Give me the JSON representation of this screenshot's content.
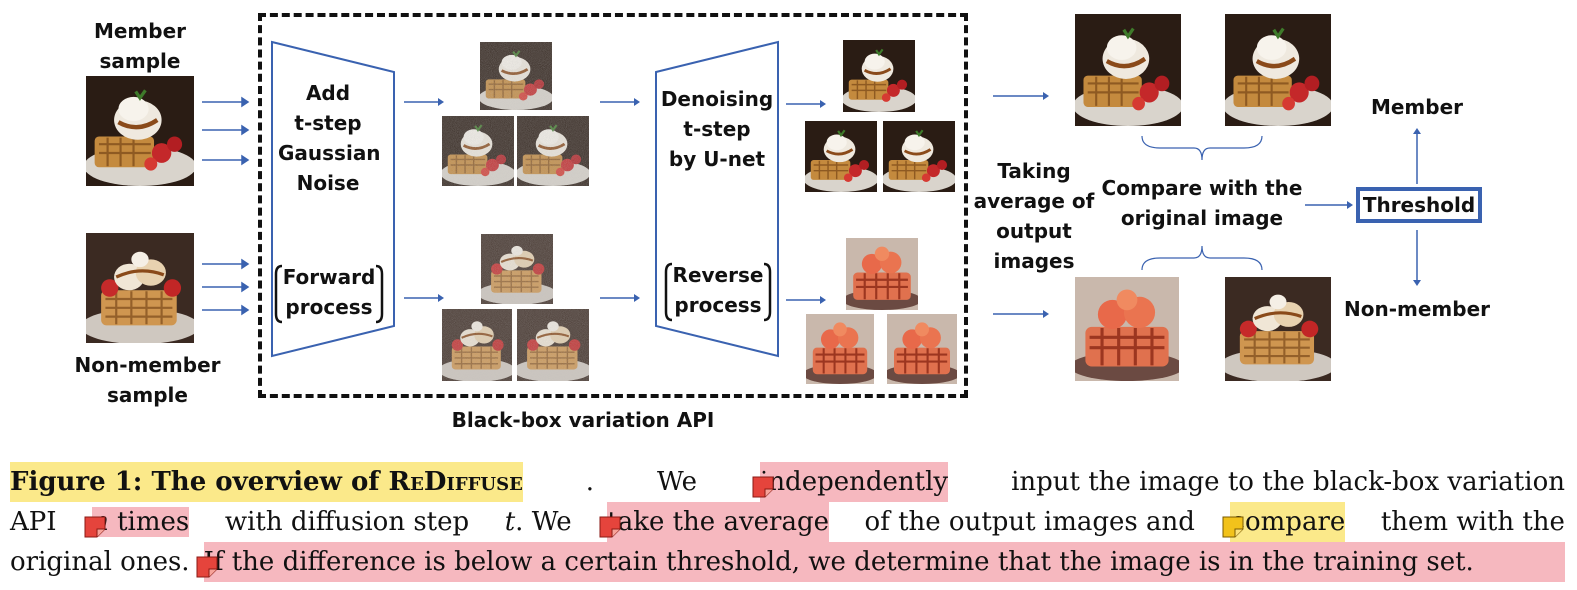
{
  "figure": {
    "member_label": [
      "Member",
      "sample"
    ],
    "nonmember_label": [
      "Non-member",
      "sample"
    ],
    "forward_label": [
      "Add",
      "t-step",
      "Gaussian",
      "Noise"
    ],
    "forward_process": [
      "Forward",
      "process"
    ],
    "denoise_label": [
      "Denoising",
      "t-step",
      "by U-net"
    ],
    "reverse_process": [
      "Reverse",
      "process"
    ],
    "api_label": "Black-box variation API",
    "average_label": [
      "Taking",
      "average of",
      "output",
      "images"
    ],
    "compare_label": [
      "Compare with the",
      "original image"
    ],
    "threshold_label": "Threshold",
    "member_out": "Member",
    "nonmember_out": "Non-member",
    "arrow_color": "#3a62b0"
  },
  "caption": {
    "fig_label": "Figure 1: The overview of",
    "method_name": "ReDiffuse",
    "line1_a": "We",
    "line1_hl": "independently",
    "line1_b": "input the image to the black-box variation",
    "line2_a": "API",
    "line2_n": "n",
    "line2_hl1": "times",
    "line2_b": "with diffusion step",
    "line2_t": "t",
    "line2_c": ". We",
    "line2_hl2": "take the average",
    "line2_d": "of the output images and",
    "line2_hl3": "compare",
    "line2_e": "them with the",
    "line3_a": "original ones.",
    "line3_hl": "If the difference is below a certain threshold, we determine that the image is in the training set."
  }
}
